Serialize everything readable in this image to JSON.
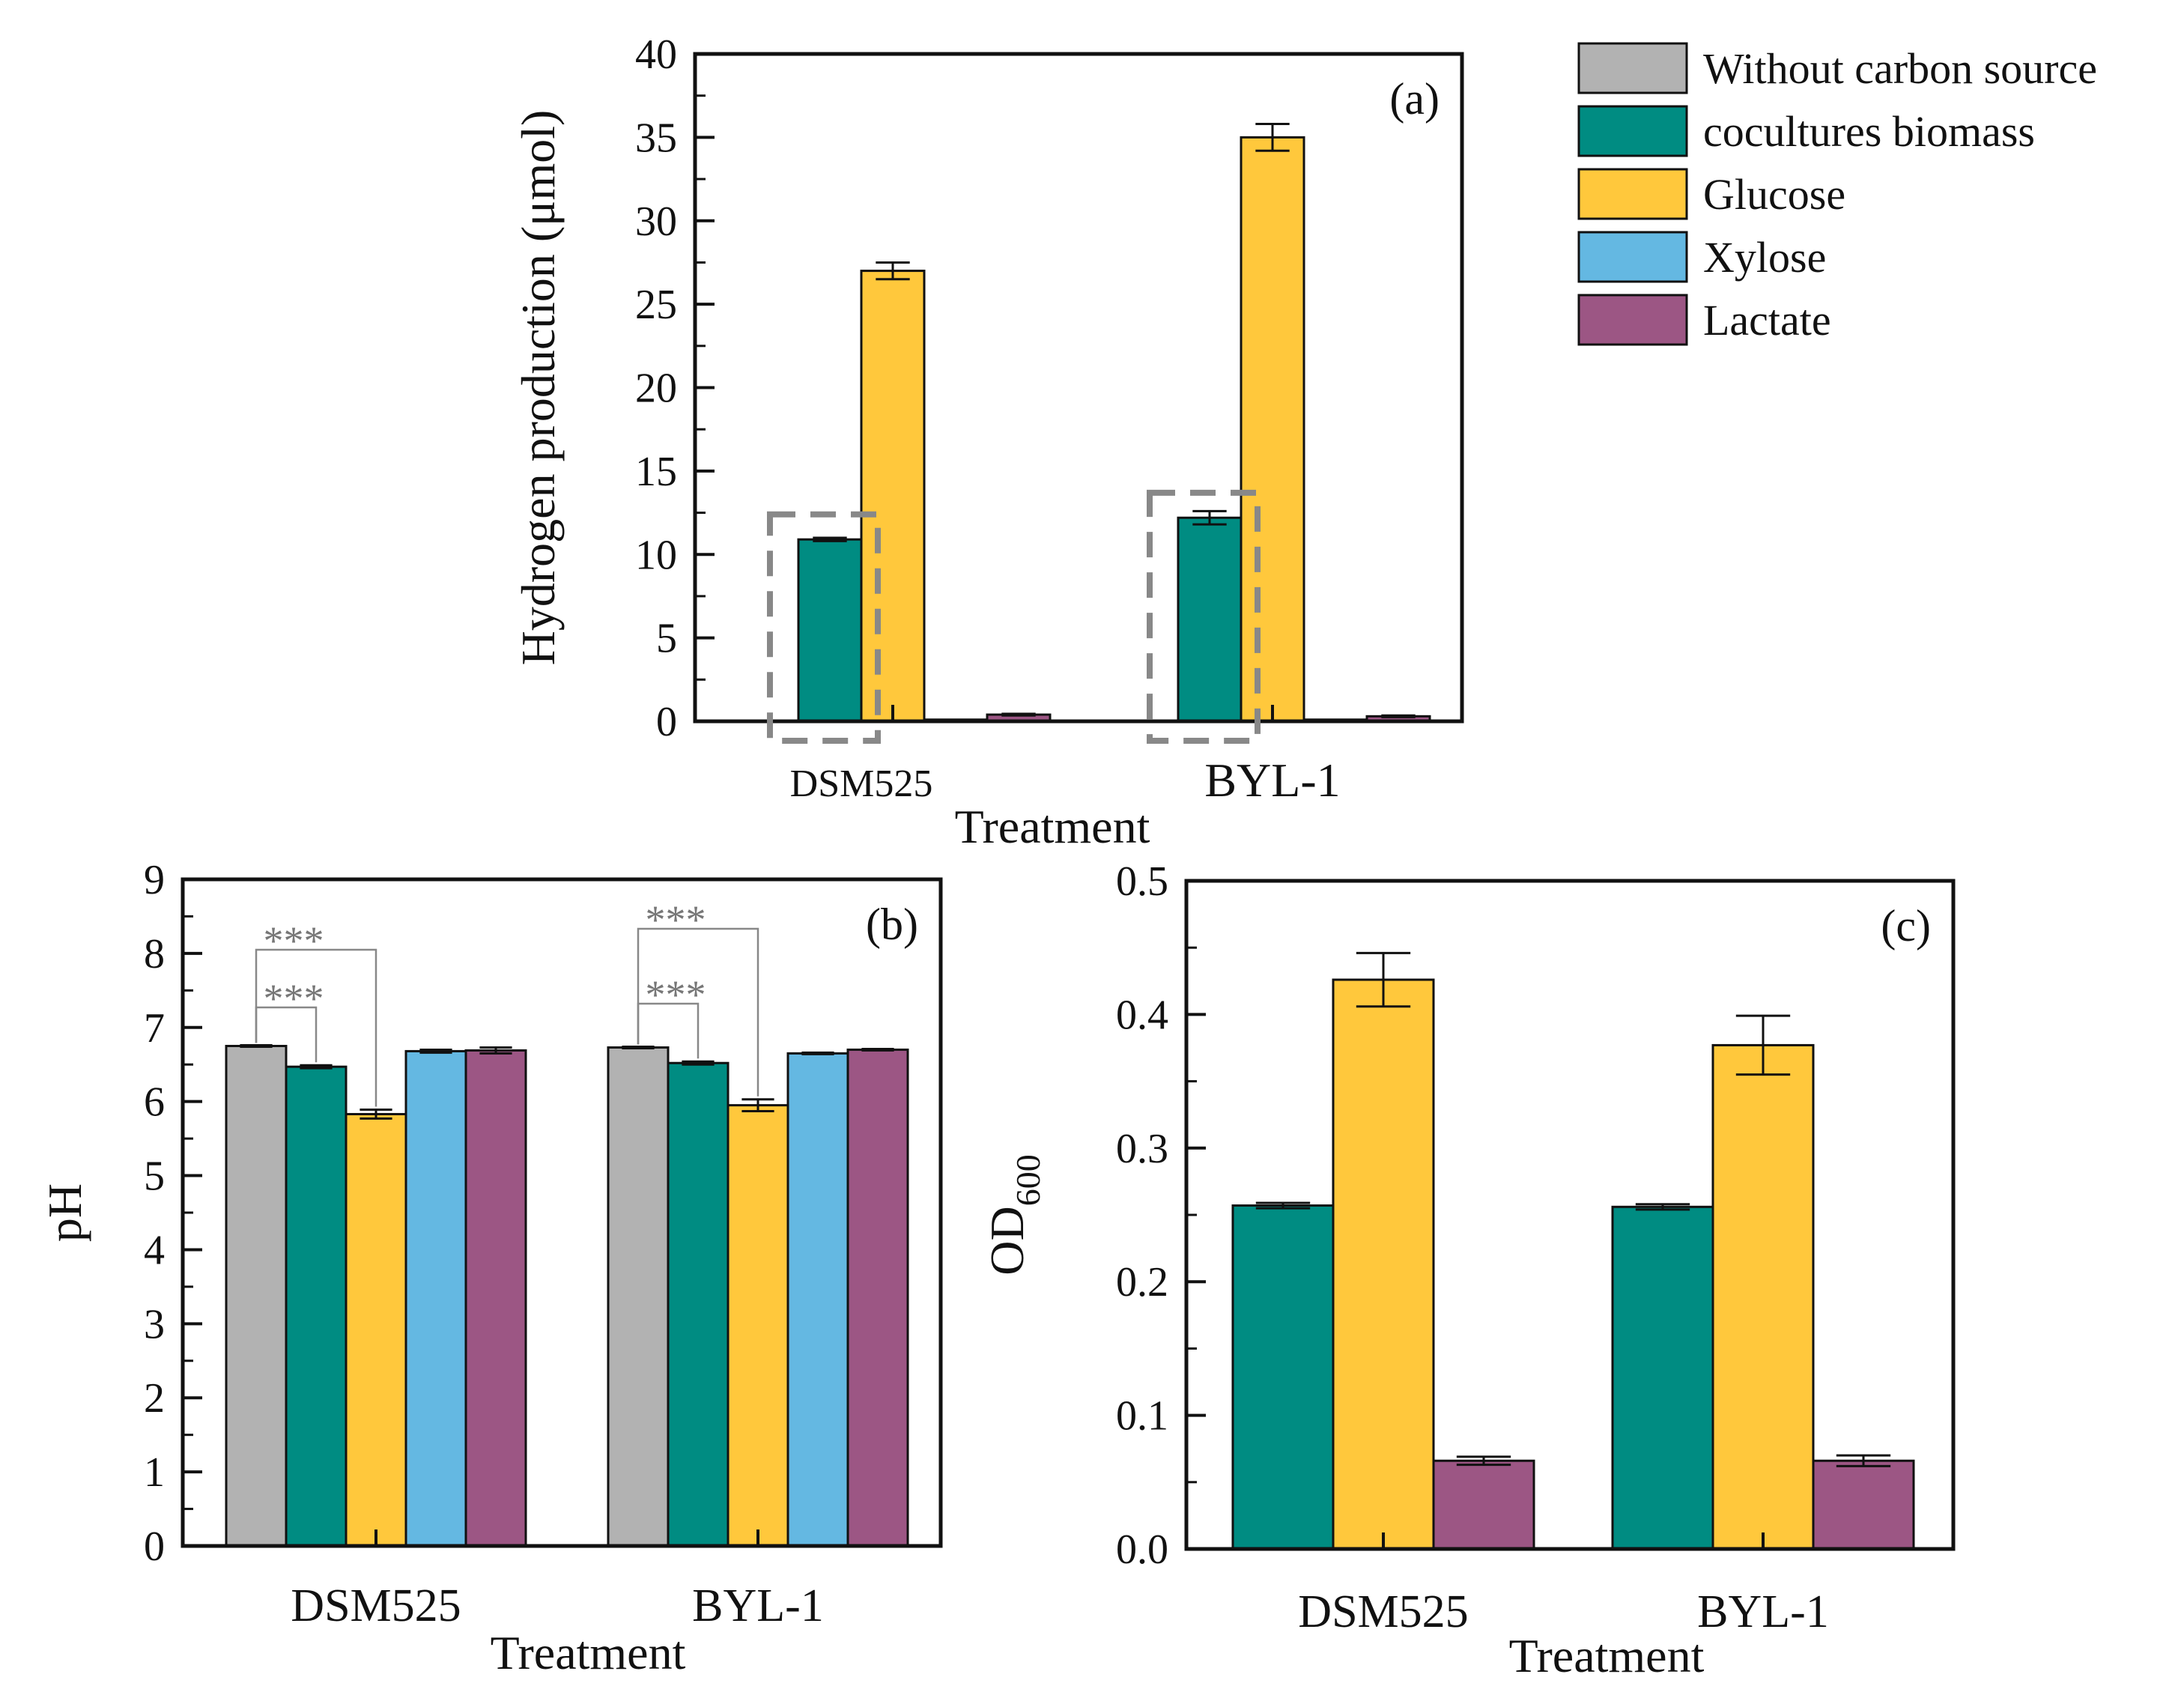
{
  "legend": [
    {
      "key": "without",
      "label": "Without carbon source",
      "color": "#b2b2b2"
    },
    {
      "key": "biomass",
      "label": "cocultures biomass",
      "color": "#008c82"
    },
    {
      "key": "glucose",
      "label": "Glucose",
      "color": "#ffc83c"
    },
    {
      "key": "xylose",
      "label": "Xylose",
      "color": "#64b8e2"
    },
    {
      "key": "lactate",
      "label": "Lactate",
      "color": "#9c5684"
    }
  ],
  "chart_data": [
    {
      "id": "a",
      "type": "bar",
      "panel_label": "(a)",
      "title": "",
      "xlabel": "Treatment",
      "ylabel": "Hydrogen production (μmol)",
      "ylim": [
        0,
        40
      ],
      "yticks": [
        0,
        5,
        10,
        15,
        20,
        25,
        30,
        35,
        40
      ],
      "categories": [
        "DSM525",
        "BYL-1"
      ],
      "series": [
        {
          "name": "Without carbon source",
          "key": "without",
          "values": [
            0.0,
            0.0
          ],
          "errors": [
            0,
            0
          ]
        },
        {
          "name": "cocultures biomass",
          "key": "biomass",
          "values": [
            10.9,
            12.2
          ],
          "errors": [
            0.1,
            0.4
          ]
        },
        {
          "name": "Glucose",
          "key": "glucose",
          "values": [
            27.0,
            35.0
          ],
          "errors": [
            0.5,
            0.8
          ]
        },
        {
          "name": "Xylose",
          "key": "xylose",
          "values": [
            0.1,
            0.1
          ],
          "errors": [
            0,
            0
          ]
        },
        {
          "name": "Lactate",
          "key": "lactate",
          "values": [
            0.4,
            0.3
          ],
          "errors": [
            0.05,
            0.05
          ]
        }
      ],
      "highlight": "dashed boxes around cocultures biomass bars"
    },
    {
      "id": "b",
      "type": "bar",
      "panel_label": "(b)",
      "title": "",
      "xlabel": "Treatment",
      "ylabel": "pH",
      "ylim": [
        0,
        9
      ],
      "yticks": [
        0,
        1,
        2,
        3,
        4,
        5,
        6,
        7,
        8,
        9
      ],
      "categories": [
        "DSM525",
        "BYL-1"
      ],
      "series": [
        {
          "name": "Without carbon source",
          "key": "without",
          "values": [
            6.75,
            6.73
          ],
          "errors": [
            0.01,
            0.01
          ]
        },
        {
          "name": "cocultures biomass",
          "key": "biomass",
          "values": [
            6.47,
            6.52
          ],
          "errors": [
            0.02,
            0.02
          ]
        },
        {
          "name": "Glucose",
          "key": "glucose",
          "values": [
            5.83,
            5.95
          ],
          "errors": [
            0.06,
            0.08
          ]
        },
        {
          "name": "Xylose",
          "key": "xylose",
          "values": [
            6.68,
            6.65
          ],
          "errors": [
            0.02,
            0.01
          ]
        },
        {
          "name": "Lactate",
          "key": "lactate",
          "values": [
            6.69,
            6.7
          ],
          "errors": [
            0.04,
            0.01
          ]
        }
      ],
      "annotations": [
        {
          "text": "***",
          "category": 0,
          "from": "without",
          "to": "biomass"
        },
        {
          "text": "***",
          "category": 0,
          "from": "without",
          "to": "glucose"
        },
        {
          "text": "***",
          "category": 1,
          "from": "without",
          "to": "biomass"
        },
        {
          "text": "***",
          "category": 1,
          "from": "without",
          "to": "glucose"
        }
      ]
    },
    {
      "id": "c",
      "type": "bar",
      "panel_label": "(c)",
      "title": "",
      "xlabel": "Treatment",
      "ylabel": "OD",
      "ylabel_sub": "600",
      "ylim": [
        0,
        0.5
      ],
      "yticks": [
        "0.0",
        "0.1",
        "0.2",
        "0.3",
        "0.4",
        "0.5"
      ],
      "categories": [
        "DSM525",
        "BYL-1"
      ],
      "series": [
        {
          "name": "cocultures biomass",
          "key": "biomass",
          "values": [
            0.257,
            0.256
          ],
          "errors": [
            0.002,
            0.002
          ]
        },
        {
          "name": "Glucose",
          "key": "glucose",
          "values": [
            0.426,
            0.377
          ],
          "errors": [
            0.02,
            0.022
          ]
        },
        {
          "name": "Lactate",
          "key": "lactate",
          "values": [
            0.066,
            0.066
          ],
          "errors": [
            0.003,
            0.004
          ]
        }
      ]
    }
  ]
}
